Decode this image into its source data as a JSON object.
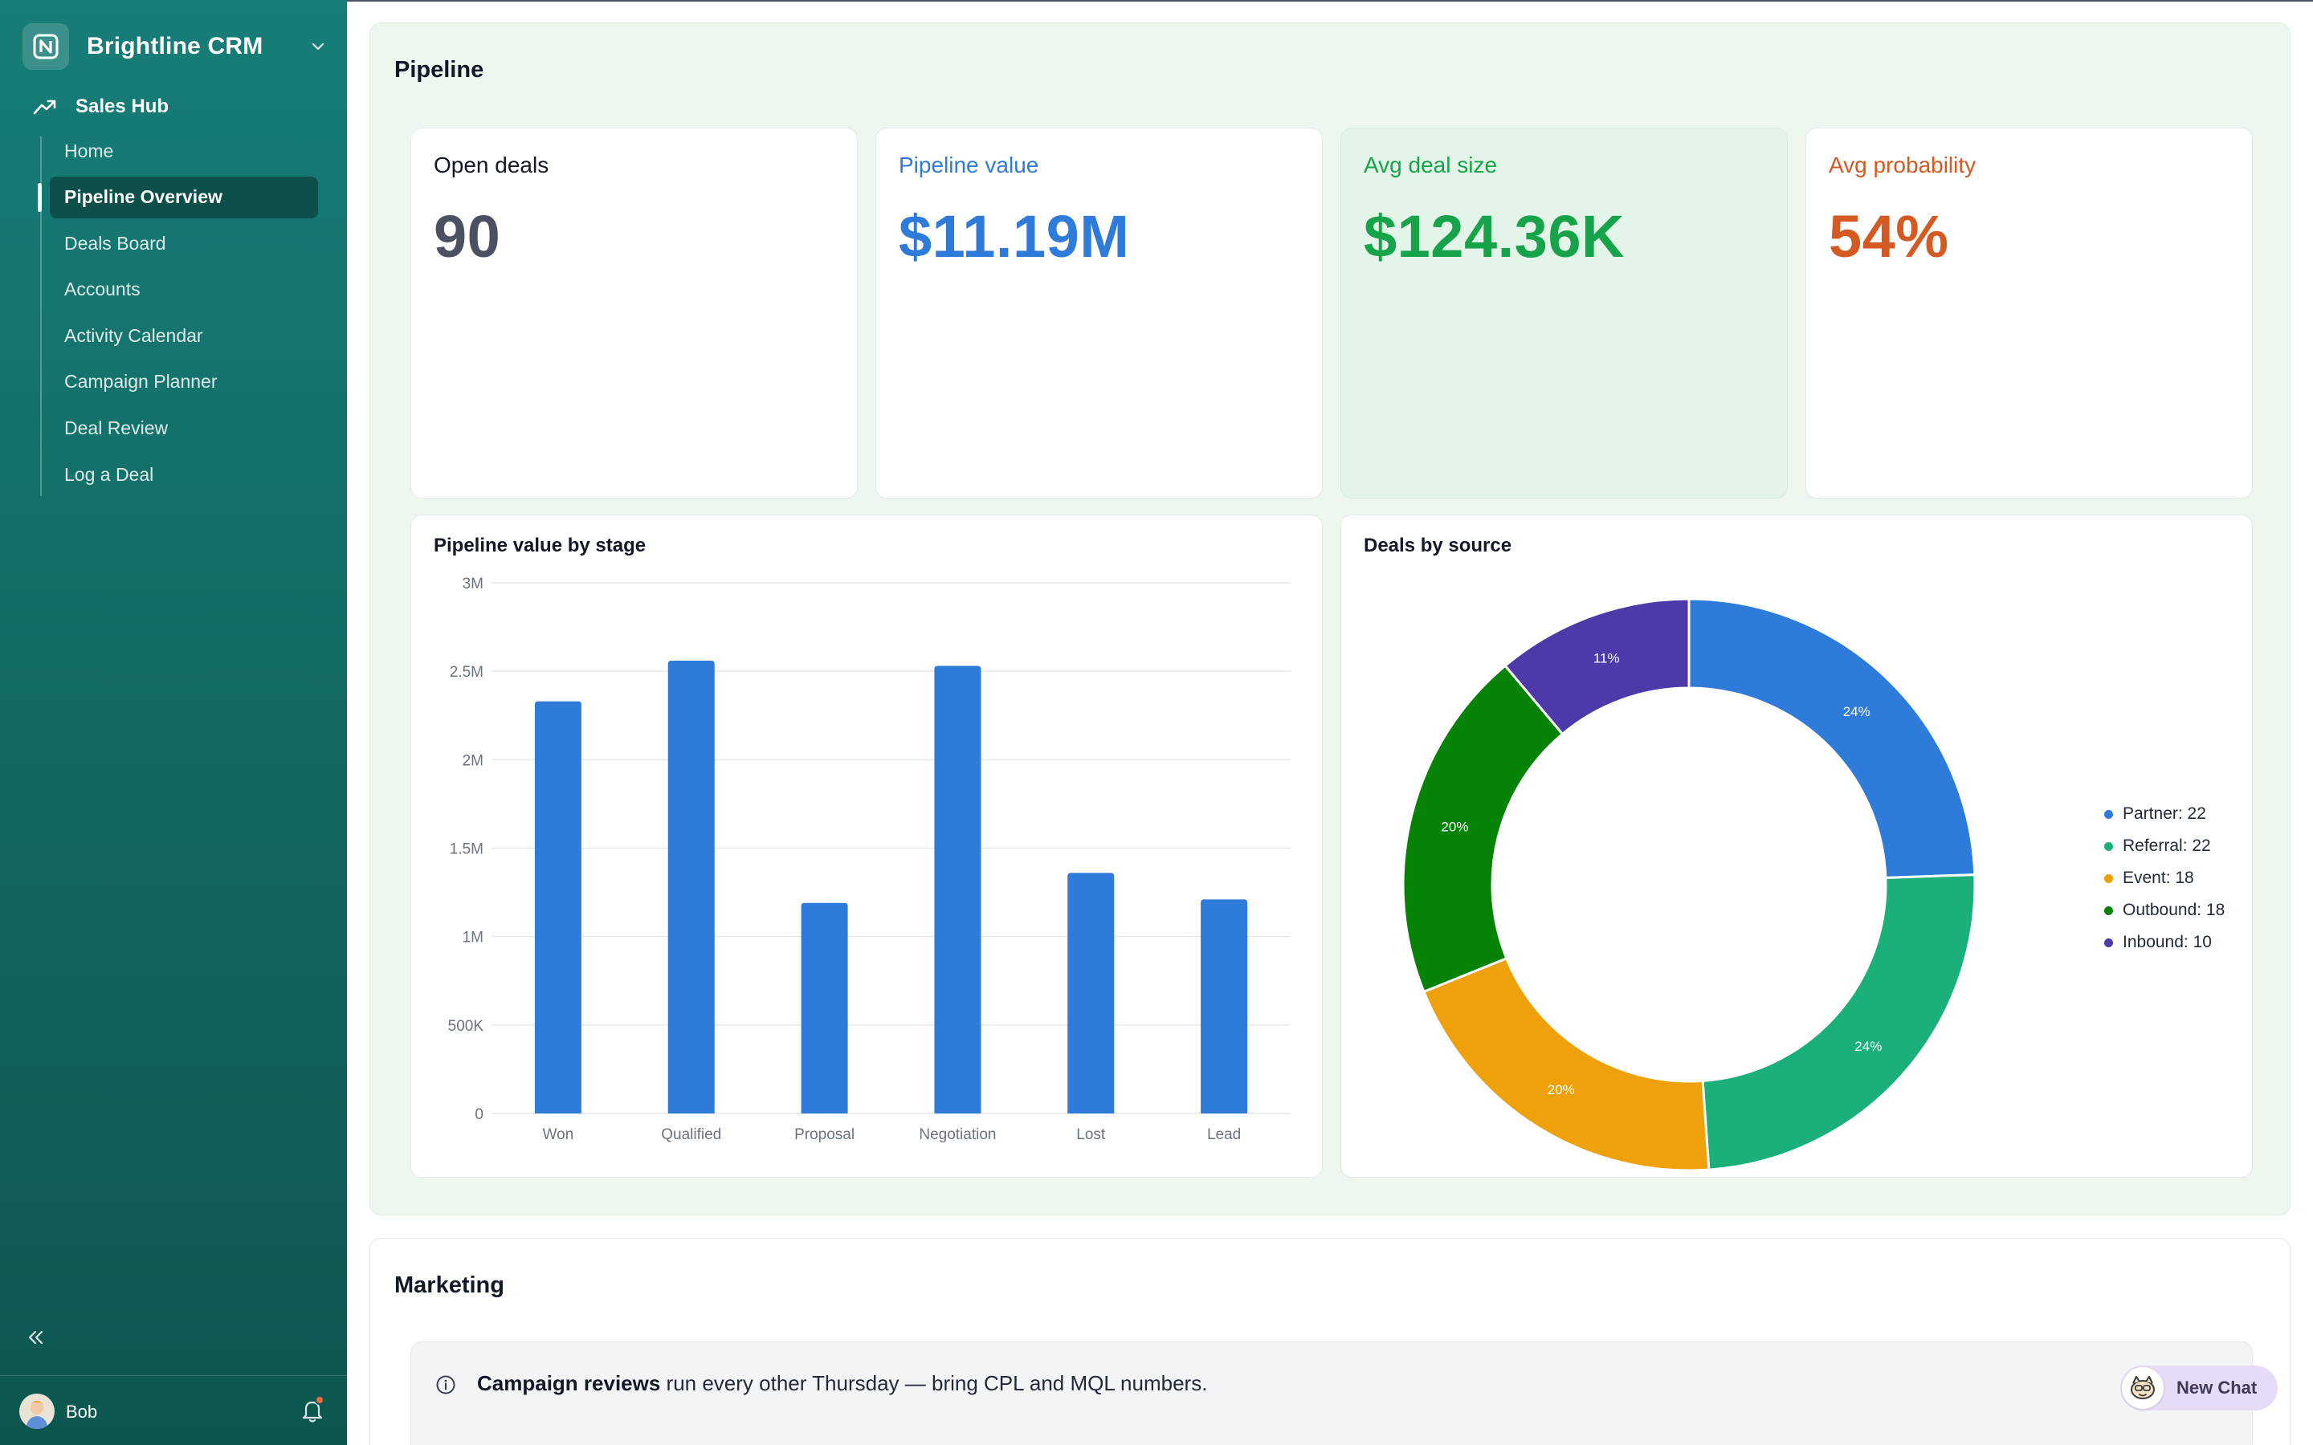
{
  "app": {
    "name": "Brightline CRM"
  },
  "sidebar": {
    "hub_label": "Sales Hub",
    "items": [
      {
        "label": "Home",
        "active": false
      },
      {
        "label": "Pipeline Overview",
        "active": true
      },
      {
        "label": "Deals Board",
        "active": false
      },
      {
        "label": "Accounts",
        "active": false
      },
      {
        "label": "Activity Calendar",
        "active": false
      },
      {
        "label": "Campaign Planner",
        "active": false
      },
      {
        "label": "Deal Review",
        "active": false
      },
      {
        "label": "Log a Deal",
        "active": false
      }
    ],
    "user_name": "Bob"
  },
  "pipeline": {
    "title": "Pipeline",
    "kpis": [
      {
        "label": "Open deals",
        "value": "90",
        "label_color": "#111827",
        "value_color": "#4b5163"
      },
      {
        "label": "Pipeline value",
        "value": "$11.19M",
        "label_color": "#2e7bd9",
        "value_color": "#2e7bd9"
      },
      {
        "label": "Avg deal size",
        "value": "$124.36K",
        "label_color": "#16a34a",
        "value_color": "#16a34a"
      },
      {
        "label": "Avg probability",
        "value": "54%",
        "label_color": "#d35a22",
        "value_color": "#d35a22"
      }
    ]
  },
  "chart_data": [
    {
      "type": "bar",
      "title": "Pipeline value by stage",
      "categories": [
        "Won",
        "Qualified",
        "Proposal",
        "Negotiation",
        "Lost",
        "Lead"
      ],
      "values": [
        2330000,
        2560000,
        1190000,
        2530000,
        1360000,
        1210000
      ],
      "ylim": [
        0,
        3000000
      ],
      "yticks": [
        0,
        500000,
        1000000,
        1500000,
        2000000,
        2500000,
        3000000
      ],
      "ytick_labels": [
        "0",
        "500K",
        "1M",
        "1.5M",
        "2M",
        "2.5M",
        "3M"
      ],
      "grid": true,
      "color": "#2e7bd9"
    },
    {
      "type": "pie",
      "title": "Deals by source",
      "donut": true,
      "labels": [
        "Partner",
        "Referral",
        "Event",
        "Outbound",
        "Inbound"
      ],
      "values": [
        22,
        22,
        18,
        18,
        10
      ],
      "percent_labels": [
        "24%",
        "24%",
        "20%",
        "20%",
        "11%"
      ],
      "legend_labels": [
        "Partner: 22",
        "Referral: 22",
        "Event: 18",
        "Outbound: 18",
        "Inbound: 10"
      ],
      "colors": [
        "#2e7bd9",
        "#1bb07a",
        "#eea10a",
        "#068306",
        "#4d3aa8"
      ],
      "legend_position": "right"
    }
  ],
  "marketing": {
    "title": "Marketing",
    "notice_bold": "Campaign reviews",
    "notice_rest": " run every other Thursday — bring CPL and MQL numbers."
  },
  "chat": {
    "label": "New Chat"
  },
  "icons": {
    "brand": "brand-logo-icon",
    "chevron": "chevron-down-icon",
    "hub": "trending-up-icon",
    "collapse": "double-chevron-left-icon",
    "bell": "bell-icon",
    "info": "info-icon"
  }
}
